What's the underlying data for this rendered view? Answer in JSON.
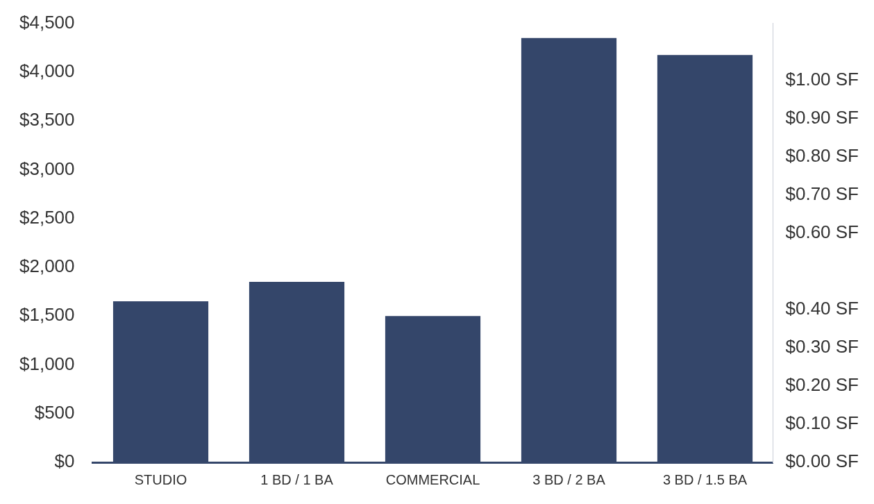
{
  "chart_data": {
    "type": "bar",
    "categories": [
      "STUDIO",
      "1 BD / 1 BA",
      "COMMERCIAL",
      "3 BD / 2 BA",
      "3 BD / 1.5 BA"
    ],
    "values": [
      1650,
      1850,
      1500,
      4350,
      4175
    ],
    "color": "#34466a",
    "ylim": [
      0,
      4500
    ],
    "yticks": [
      {
        "value": 0,
        "label": "$0"
      },
      {
        "value": 500,
        "label": "$500"
      },
      {
        "value": 1000,
        "label": "$1,000"
      },
      {
        "value": 1500,
        "label": "$1,500"
      },
      {
        "value": 2000,
        "label": "$2,000"
      },
      {
        "value": 2500,
        "label": "$2,500"
      },
      {
        "value": 3000,
        "label": "$3,000"
      },
      {
        "value": 3500,
        "label": "$3,500"
      },
      {
        "value": 4000,
        "label": "$4,000"
      },
      {
        "value": 4500,
        "label": "$4,500"
      }
    ],
    "y2lim": [
      0,
      1.15
    ],
    "y2ticks": [
      {
        "value": 0,
        "label": "$0.00 SF"
      },
      {
        "value": 0.1,
        "label": "$0.10 SF"
      },
      {
        "value": 0.2,
        "label": "$0.20 SF"
      },
      {
        "value": 0.3,
        "label": "$0.30 SF"
      },
      {
        "value": 0.4,
        "label": "$0.40 SF"
      },
      {
        "value": 0.6,
        "label": "$0.60 SF"
      },
      {
        "value": 0.7,
        "label": "$0.70 SF"
      },
      {
        "value": 0.8,
        "label": "$0.80 SF"
      },
      {
        "value": 0.9,
        "label": "$0.90 SF"
      },
      {
        "value": 1.0,
        "label": "$1.00 SF"
      }
    ],
    "grid": false,
    "legend": false
  }
}
